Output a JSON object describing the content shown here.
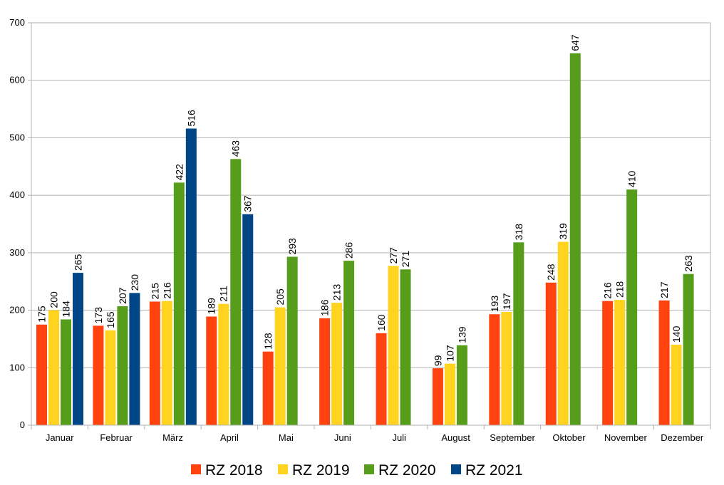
{
  "chart_data": {
    "type": "bar",
    "categories": [
      "Januar",
      "Februar",
      "März",
      "April",
      "Mai",
      "Juni",
      "Juli",
      "August",
      "September",
      "Oktober",
      "November",
      "Dezember"
    ],
    "series": [
      {
        "name": "RZ 2018",
        "color": "#ff420e",
        "values": [
          175,
          173,
          215,
          189,
          128,
          186,
          160,
          99,
          193,
          248,
          216,
          217
        ]
      },
      {
        "name": "RZ 2019",
        "color": "#ffd320",
        "values": [
          200,
          165,
          216,
          211,
          205,
          213,
          277,
          107,
          197,
          319,
          218,
          140
        ]
      },
      {
        "name": "RZ 2020",
        "color": "#579d1c",
        "values": [
          184,
          207,
          422,
          463,
          293,
          286,
          271,
          139,
          318,
          647,
          410,
          263
        ]
      },
      {
        "name": "RZ 2021",
        "color": "#004586",
        "values": [
          265,
          230,
          516,
          367,
          null,
          null,
          null,
          null,
          null,
          null,
          null,
          null
        ]
      }
    ],
    "ylim": [
      0,
      700
    ],
    "yticks": [
      0,
      100,
      200,
      300,
      400,
      500,
      600,
      700
    ],
    "grid": true,
    "legend_position": "bottom",
    "title": "",
    "xlabel": "",
    "ylabel": ""
  }
}
